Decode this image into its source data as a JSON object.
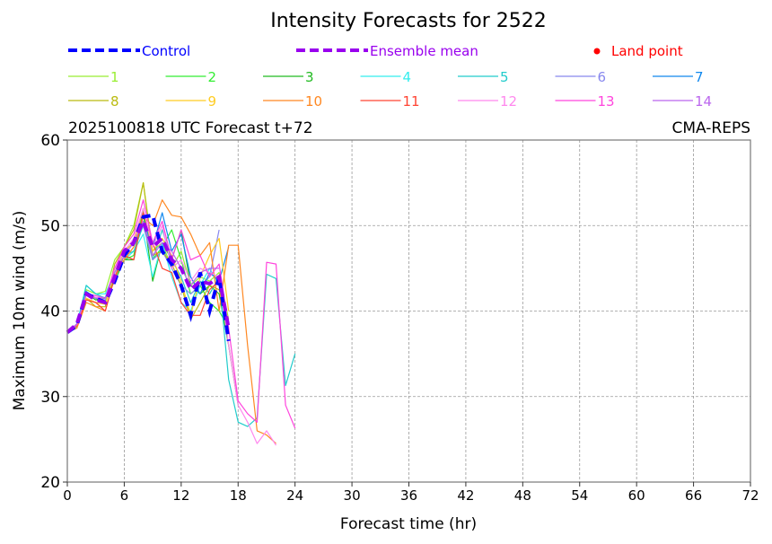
{
  "chart_data": {
    "type": "line",
    "title": "Intensity Forecasts for 2522",
    "subtitle_left": "2025100818 UTC Forecast t+72",
    "subtitle_right": "CMA-REPS",
    "xlabel": "Forecast time (hr)",
    "ylabel": "Maximum 10m wind (m/s)",
    "xlim": [
      0,
      72
    ],
    "ylim": [
      20,
      60
    ],
    "xticks": [
      0,
      6,
      12,
      18,
      24,
      30,
      36,
      42,
      48,
      54,
      60,
      66,
      72
    ],
    "yticks": [
      20,
      30,
      40,
      50,
      60
    ],
    "grid": true,
    "legend": {
      "placement": "top",
      "control_label": "Control",
      "mean_label": "Ensemble mean",
      "land_label": "Land point",
      "land_color": "#ff0000"
    },
    "control": {
      "name": "Control",
      "color": "#0000ff",
      "x": [
        0,
        1,
        2,
        3,
        4,
        5,
        6,
        7,
        8,
        9,
        10,
        11,
        12,
        13,
        14,
        15,
        16,
        17
      ],
      "values": [
        37.5,
        38.3,
        42.0,
        41.5,
        41.0,
        43.5,
        46.5,
        48.0,
        51.0,
        51.2,
        47.0,
        45.5,
        43.0,
        39.5,
        44.5,
        40.0,
        44.0,
        36.5
      ]
    },
    "mean": {
      "name": "Ensemble mean",
      "color": "#9900ee",
      "x": [
        0,
        1,
        2,
        3,
        4,
        5,
        6,
        7,
        8,
        9,
        10,
        11,
        12,
        13,
        14,
        15,
        16,
        17
      ],
      "values": [
        37.5,
        38.5,
        42.0,
        41.3,
        41.0,
        44.0,
        47.0,
        48.0,
        50.5,
        47.5,
        48.5,
        46.0,
        45.0,
        42.5,
        43.5,
        43.2,
        44.0,
        38.0
      ]
    },
    "series": [
      {
        "name": "1",
        "color": "#99ee33",
        "x": [
          0,
          1,
          2,
          3,
          4,
          5,
          6,
          7,
          8,
          9,
          10,
          11,
          12,
          13,
          14,
          15,
          16,
          17
        ],
        "values": [
          37.5,
          38.5,
          42.5,
          42.0,
          42.3,
          46.0,
          47.5,
          50.0,
          55.0,
          47.0,
          48.0,
          45.0,
          47.0,
          43.0,
          44.0,
          43.5,
          44.5,
          39.0
        ]
      },
      {
        "name": "2",
        "color": "#33ee33",
        "x": [
          0,
          1,
          2,
          3,
          4,
          5,
          6,
          7,
          8,
          9,
          10,
          11,
          12,
          13,
          14,
          15,
          16,
          17
        ],
        "values": [
          37.5,
          38.2,
          42.0,
          41.5,
          41.0,
          44.0,
          46.0,
          46.5,
          52.0,
          46.0,
          47.5,
          49.5,
          46.0,
          42.0,
          43.0,
          41.0,
          40.0,
          38.0
        ]
      },
      {
        "name": "3",
        "color": "#22bb22",
        "x": [
          0,
          1,
          2,
          3,
          4,
          5,
          6,
          7,
          8,
          9,
          10,
          11,
          12,
          13,
          14,
          15,
          16,
          17,
          18
        ],
        "values": [
          37.5,
          38.3,
          42.0,
          41.3,
          41.5,
          43.5,
          46.0,
          46.0,
          51.5,
          43.5,
          48.0,
          46.0,
          49.5,
          43.0,
          42.0,
          43.0,
          42.0,
          36.0,
          29.0
        ]
      },
      {
        "name": "4",
        "color": "#33eeee",
        "x": [
          0,
          1,
          2,
          3,
          4,
          5,
          6,
          7,
          8,
          9,
          10,
          11,
          12,
          13,
          14,
          15,
          16,
          17
        ],
        "values": [
          37.5,
          38.5,
          43.0,
          42.0,
          42.0,
          44.5,
          46.0,
          47.0,
          49.0,
          44.0,
          48.0,
          44.0,
          41.0,
          40.0,
          43.0,
          45.0,
          43.0,
          38.5
        ]
      },
      {
        "name": "5",
        "color": "#22cccc",
        "x": [
          0,
          1,
          2,
          3,
          4,
          5,
          6,
          7,
          8,
          9,
          10,
          11,
          12,
          13,
          14,
          15,
          16,
          17,
          18,
          19,
          20,
          21,
          22,
          23,
          24
        ],
        "values": [
          37.5,
          38.2,
          43.0,
          42.0,
          41.5,
          44.0,
          46.5,
          47.0,
          50.0,
          46.0,
          49.5,
          46.0,
          44.0,
          41.0,
          43.5,
          42.0,
          44.0,
          32.0,
          27.0,
          26.5,
          27.5,
          44.3,
          43.8,
          31.3,
          35.0
        ]
      },
      {
        "name": "6",
        "color": "#8888ee",
        "x": [
          0,
          1,
          2,
          3,
          4,
          5,
          6,
          7,
          8,
          9,
          10,
          11,
          12,
          13,
          14,
          15,
          16
        ],
        "values": [
          37.5,
          38.5,
          42.0,
          41.5,
          41.3,
          44.5,
          47.0,
          48.0,
          50.0,
          46.0,
          47.0,
          45.0,
          43.0,
          42.0,
          43.0,
          44.0,
          49.5
        ]
      },
      {
        "name": "7",
        "color": "#1188ee",
        "x": [
          0,
          1,
          2,
          3,
          4,
          5,
          6,
          7,
          8,
          9,
          10,
          11,
          12,
          13,
          14,
          15,
          16,
          17
        ],
        "values": [
          37.5,
          38.4,
          42.3,
          41.5,
          41.6,
          44.5,
          47.0,
          48.0,
          50.5,
          47.5,
          51.5,
          47.0,
          49.0,
          44.0,
          42.0,
          44.5,
          43.5,
          47.5
        ]
      },
      {
        "name": "8",
        "color": "#bbbb11",
        "x": [
          0,
          1,
          2,
          3,
          4,
          5,
          6,
          7,
          8,
          9,
          10,
          11,
          12,
          13,
          14,
          15,
          16,
          17
        ],
        "values": [
          37.5,
          38.0,
          41.5,
          40.5,
          40.5,
          45.5,
          47.5,
          49.5,
          55.0,
          46.5,
          47.0,
          45.5,
          43.0,
          39.0,
          41.0,
          43.0,
          42.5,
          38.0
        ]
      },
      {
        "name": "9",
        "color": "#ffcc22",
        "x": [
          0,
          1,
          2,
          3,
          4,
          5,
          6,
          7,
          8,
          9,
          10,
          11,
          12,
          13,
          14,
          15,
          16,
          17
        ],
        "values": [
          37.5,
          38.3,
          41.5,
          41.0,
          40.8,
          44.5,
          47.0,
          48.0,
          52.0,
          47.0,
          48.5,
          46.5,
          43.5,
          39.5,
          44.0,
          46.5,
          48.5,
          40.0
        ]
      },
      {
        "name": "10",
        "color": "#ff8822",
        "x": [
          0,
          1,
          2,
          3,
          4,
          5,
          6,
          7,
          8,
          9,
          10,
          11,
          12,
          13,
          14,
          15,
          16,
          17,
          18,
          19,
          20,
          21,
          22
        ],
        "values": [
          37.5,
          38.0,
          41.0,
          40.5,
          40.0,
          44.0,
          46.0,
          47.5,
          51.0,
          50.0,
          53.0,
          51.2,
          51.0,
          49.0,
          46.5,
          48.0,
          40.0,
          47.7,
          47.7,
          36.0,
          26.0,
          25.5,
          24.5
        ]
      },
      {
        "name": "11",
        "color": "#ff4433",
        "x": [
          0,
          1,
          2,
          3,
          4,
          5,
          6,
          7,
          8,
          9,
          10,
          11,
          12,
          13,
          14,
          15,
          16
        ],
        "values": [
          37.5,
          38.3,
          41.3,
          41.0,
          40.0,
          44.0,
          46.5,
          46.0,
          51.5,
          48.0,
          45.0,
          44.5,
          41.0,
          39.5,
          39.5,
          42.5,
          43.5
        ]
      },
      {
        "name": "12",
        "color": "#ff88ee",
        "x": [
          0,
          1,
          2,
          3,
          4,
          5,
          6,
          7,
          8,
          9,
          10,
          11,
          12,
          13,
          14,
          15,
          16,
          17,
          18,
          19,
          20,
          21,
          22
        ],
        "values": [
          37.5,
          38.4,
          42.0,
          41.6,
          41.5,
          45.0,
          47.0,
          48.5,
          52.0,
          47.5,
          50.0,
          45.0,
          46.0,
          43.5,
          45.0,
          44.5,
          44.0,
          36.0,
          29.0,
          27.0,
          24.5,
          26.0,
          24.3
        ]
      },
      {
        "name": "13",
        "color": "#ff44dd",
        "x": [
          0,
          1,
          2,
          3,
          4,
          5,
          6,
          7,
          8,
          9,
          10,
          11,
          12,
          13,
          14,
          15,
          16,
          17,
          18,
          19,
          20,
          21,
          22,
          23,
          24
        ],
        "values": [
          37.5,
          38.4,
          42.0,
          41.8,
          41.5,
          45.0,
          47.5,
          49.0,
          53.0,
          48.0,
          50.5,
          46.0,
          49.5,
          46.0,
          46.5,
          44.0,
          45.5,
          38.0,
          29.5,
          28.0,
          27.0,
          45.7,
          45.5,
          29.0,
          26.3
        ]
      },
      {
        "name": "14",
        "color": "#bb66ee",
        "x": [
          0,
          1,
          2,
          3,
          4,
          5,
          6,
          7,
          8,
          9,
          10,
          11,
          12,
          13,
          14,
          15,
          16
        ],
        "values": [
          37.5,
          38.5,
          42.0,
          41.5,
          41.5,
          44.5,
          46.5,
          48.0,
          50.5,
          46.5,
          48.0,
          47.0,
          45.0,
          43.0,
          44.5,
          45.0,
          45.0
        ]
      }
    ]
  }
}
